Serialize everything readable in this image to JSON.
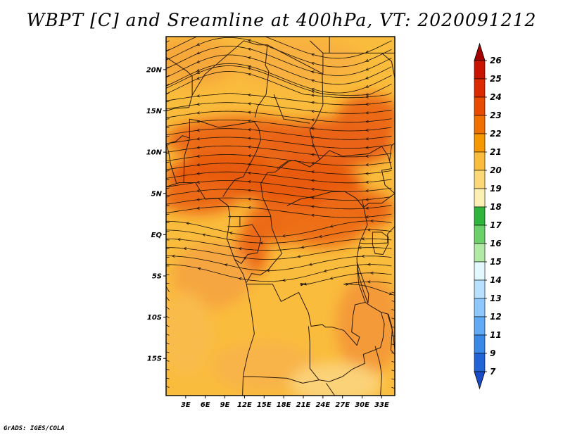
{
  "title": "WBPT [C] and Sreamline at 400hPa, VT: 2020091212",
  "credit": "GrADS: IGES/COLA",
  "map": {
    "variable": "Wet-bulb potential temperature at 400hPa",
    "lat_range": [
      -19.5,
      24
    ],
    "lon_range": [
      0,
      35
    ],
    "lat_labels": [
      "20N",
      "15N",
      "10N",
      "5N",
      "EQ",
      "5S",
      "10S",
      "15S"
    ],
    "lat_values": [
      20,
      15,
      10,
      5,
      0,
      -5,
      -10,
      -15
    ],
    "lon_labels": [
      "3E",
      "6E",
      "9E",
      "12E",
      "15E",
      "18E",
      "21E",
      "24E",
      "27E",
      "30E",
      "33E"
    ],
    "lon_values": [
      3,
      6,
      9,
      12,
      15,
      18,
      21,
      24,
      27,
      30,
      33
    ]
  },
  "colorbar": {
    "labels": [
      "26",
      "25",
      "24",
      "23",
      "22",
      "21",
      "20",
      "19",
      "18",
      "17",
      "16",
      "15",
      "14",
      "13",
      "12",
      "11",
      "9",
      "7"
    ],
    "colors": [
      "#a50000",
      "#c81400",
      "#dc2a00",
      "#e94c00",
      "#f07000",
      "#f79800",
      "#fabc3c",
      "#fcd878",
      "#fdf0b4",
      "#2fb43c",
      "#6cd06a",
      "#b0eaa4",
      "#e2f8ff",
      "#b8e0ff",
      "#8ec8ff",
      "#60aaf6",
      "#3a88e8",
      "#2064d8",
      "#1a4cc8"
    ]
  },
  "colors": {
    "frame": "#000000",
    "streamline": "#1a1208",
    "border": "#2a1a08"
  }
}
